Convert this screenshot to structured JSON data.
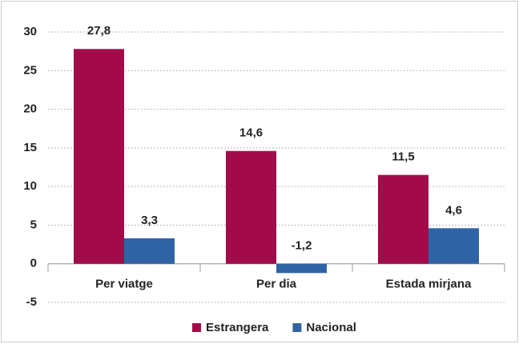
{
  "chart_data": {
    "type": "bar",
    "categories": [
      "Per viatge",
      "Per dia",
      "Estada mirjana"
    ],
    "series": [
      {
        "name": "Estrangera",
        "color": "#a30a4a",
        "values": [
          27.8,
          14.6,
          11.5
        ],
        "value_labels": [
          "27,8",
          "14,6",
          "11,5"
        ]
      },
      {
        "name": "Nacional",
        "color": "#2f63a6",
        "values": [
          3.3,
          -1.2,
          4.6
        ],
        "value_labels": [
          "3,3",
          "-1,2",
          "4,6"
        ]
      }
    ],
    "ylim": [
      -5,
      30
    ],
    "yticks": [
      -5,
      0,
      5,
      10,
      15,
      20,
      25,
      30
    ],
    "grid": true,
    "legend": "bottom"
  }
}
